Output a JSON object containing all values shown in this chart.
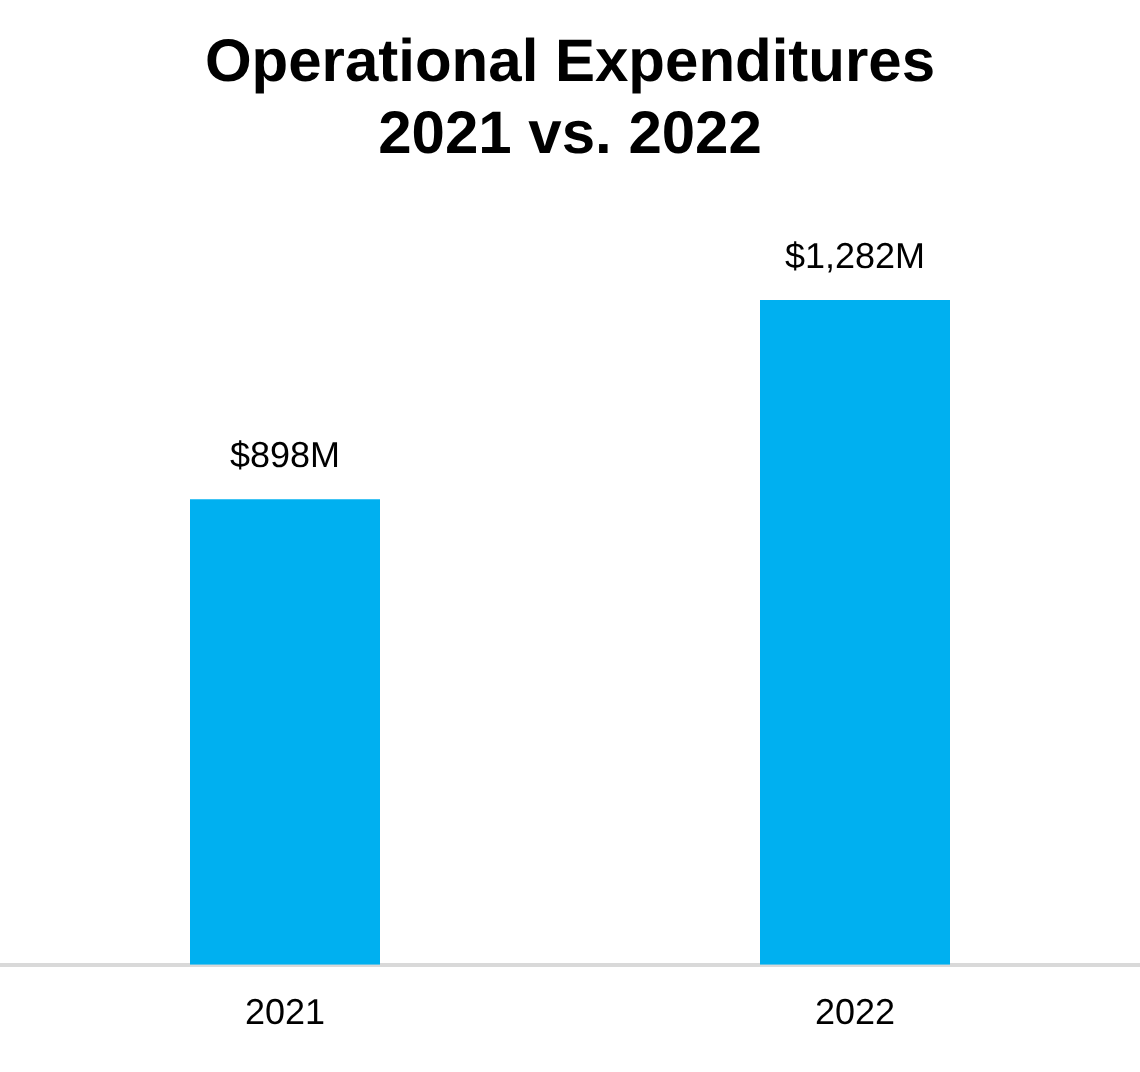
{
  "chart_data": {
    "type": "bar",
    "title": "Operational Expenditures\n2021 vs. 2022",
    "categories": [
      "2021",
      "2022"
    ],
    "values": [
      898,
      1282
    ],
    "value_labels": [
      "$898M",
      "$1,282M"
    ],
    "color": "#00b0f0"
  }
}
